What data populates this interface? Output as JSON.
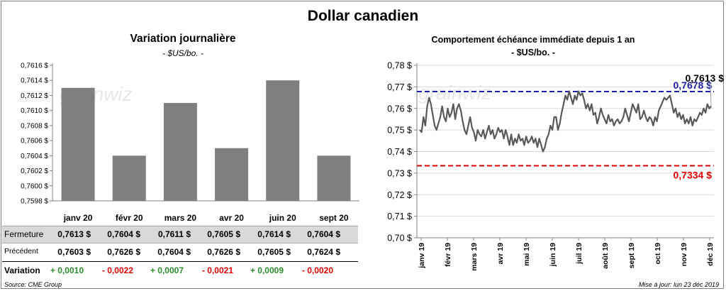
{
  "title": "Dollar canadien",
  "left": {
    "title": "Variation  journalière",
    "subtitle": "- $US/bo. -"
  },
  "right": {
    "title": "Comportement échéance immédiate depuis 1 an",
    "subtitle": "- $US/bo. -"
  },
  "table": {
    "fermeture_label": "Fermeture",
    "precedent_label": "Précédent",
    "variation_label": "Variation",
    "fermeture": [
      "0,7613  $",
      "0,7604  $",
      "0,7611  $",
      "0,7605  $",
      "0,7614  $",
      "0,7604  $"
    ],
    "precedent": [
      "0,7603  $",
      "0,7626  $",
      "0,7604  $",
      "0,7626  $",
      "0,7605  $",
      "0,7624  $"
    ],
    "variation": [
      "+ 0,0010",
      "- 0,0022",
      "+ 0,0007",
      "- 0,0021",
      "+ 0,0009",
      "- 0,0020"
    ],
    "variation_sign": [
      "pos",
      "neg",
      "pos",
      "neg",
      "pos",
      "neg"
    ]
  },
  "footer": {
    "source": "Source: CME Group",
    "update": "Mise à jour: lun 23 déc 2019"
  },
  "watermark": "grainwiz",
  "colors": {
    "bar": "#7f7f7f",
    "line": "#595959",
    "high_line": "#1f1fa8",
    "low_line": "#e00000",
    "positive": "#2e8b2e",
    "negative": "#e00000"
  },
  "chart_data": [
    {
      "type": "bar",
      "categories": [
        "janv 20",
        "févr 20",
        "mars 20",
        "avr 20",
        "juin 20",
        "sept 20"
      ],
      "values": [
        0.7613,
        0.7604,
        0.7611,
        0.7605,
        0.7614,
        0.7604
      ],
      "ylim": [
        0.7598,
        0.7616
      ],
      "yticks": [
        0.7598,
        0.76,
        0.7602,
        0.7604,
        0.7606,
        0.7608,
        0.761,
        0.7612,
        0.7614,
        0.7616
      ],
      "ytick_labels": [
        "0,7598 $",
        "0,7600 $",
        "0,7602 $",
        "0,7604 $",
        "0,7606 $",
        "0,7608 $",
        "0,7610 $",
        "0,7612 $",
        "0,7614 $",
        "0,7616 $"
      ],
      "grid": false
    },
    {
      "type": "line",
      "xlabels": [
        "janv 19",
        "févr 19",
        "mars 19",
        "avr 19",
        "mai 19",
        "juin 19",
        "juil 19",
        "août 19",
        "sept 19",
        "oct 19",
        "nov 19",
        "déc 19"
      ],
      "ylim": [
        0.7,
        0.78
      ],
      "yticks": [
        0.7,
        0.71,
        0.72,
        0.73,
        0.74,
        0.75,
        0.76,
        0.77,
        0.78
      ],
      "ytick_labels": [
        "0,70 $",
        "0,71 $",
        "0,72 $",
        "0,73 $",
        "0,74 $",
        "0,75 $",
        "0,76 $",
        "0,77 $",
        "0,78 $"
      ],
      "grid": true,
      "series": [
        {
          "values": [
            0.75,
            0.749,
            0.756,
            0.752,
            0.761,
            0.765,
            0.762,
            0.757,
            0.752,
            0.75,
            0.753,
            0.756,
            0.761,
            0.756,
            0.754,
            0.76,
            0.756,
            0.758,
            0.762,
            0.755,
            0.76,
            0.762,
            0.759,
            0.754,
            0.75,
            0.748,
            0.752,
            0.756,
            0.751,
            0.749,
            0.745,
            0.75,
            0.748,
            0.747,
            0.75,
            0.746,
            0.749,
            0.752,
            0.748,
            0.75,
            0.746,
            0.748,
            0.751,
            0.749,
            0.75,
            0.746,
            0.75,
            0.747,
            0.743,
            0.748,
            0.743,
            0.746,
            0.744,
            0.748,
            0.745,
            0.746,
            0.743,
            0.747,
            0.744,
            0.745,
            0.747,
            0.744,
            0.746,
            0.742,
            0.746,
            0.743,
            0.74,
            0.742,
            0.746,
            0.748,
            0.752,
            0.75,
            0.756,
            0.756,
            0.75,
            0.753,
            0.758,
            0.762,
            0.766,
            0.764,
            0.768,
            0.765,
            0.762,
            0.766,
            0.764,
            0.768,
            0.766,
            0.767,
            0.764,
            0.76,
            0.762,
            0.759,
            0.762,
            0.757,
            0.758,
            0.753,
            0.756,
            0.76,
            0.757,
            0.755,
            0.753,
            0.757,
            0.754,
            0.755,
            0.752,
            0.754,
            0.755,
            0.753,
            0.754,
            0.756,
            0.76,
            0.757,
            0.754,
            0.758,
            0.762,
            0.76,
            0.758,
            0.762,
            0.755,
            0.756,
            0.759,
            0.756,
            0.754,
            0.756,
            0.755,
            0.752,
            0.756,
            0.754,
            0.759,
            0.761,
            0.763,
            0.765,
            0.764,
            0.765,
            0.766,
            0.762,
            0.758,
            0.76,
            0.756,
            0.758,
            0.755,
            0.757,
            0.753,
            0.755,
            0.753,
            0.756,
            0.752,
            0.755,
            0.754,
            0.756,
            0.758,
            0.757,
            0.76,
            0.758,
            0.762,
            0.76,
            0.761
          ]
        }
      ],
      "reference_lines": [
        {
          "value": 0.7678,
          "label": "0,7678 $"
        },
        {
          "value": 0.7334,
          "label": "0,7334 $"
        }
      ],
      "last_value_label": "0,7613 $"
    }
  ]
}
